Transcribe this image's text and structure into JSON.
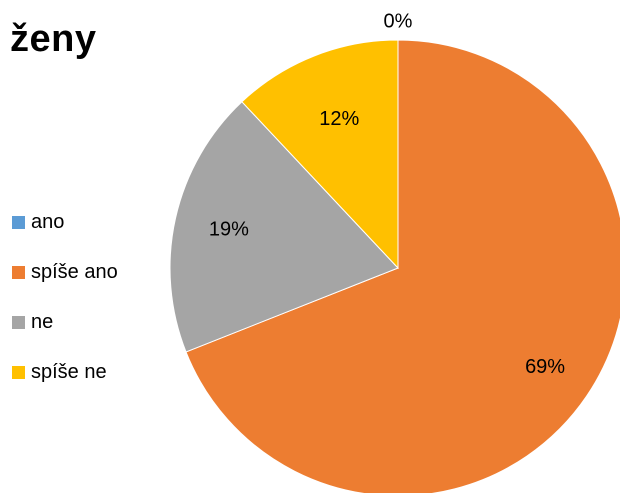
{
  "chart_data": {
    "type": "pie",
    "title": "ženy",
    "categories": [
      "ano",
      "spíše ano",
      "ne",
      "spíše ne"
    ],
    "values": [
      0,
      69,
      19,
      12
    ],
    "labels": [
      "0%",
      "69%",
      "19%",
      "12%"
    ],
    "colors": [
      "#5B9BD5",
      "#ED7D31",
      "#A5A5A5",
      "#FFC000"
    ],
    "legend_position": "left"
  }
}
